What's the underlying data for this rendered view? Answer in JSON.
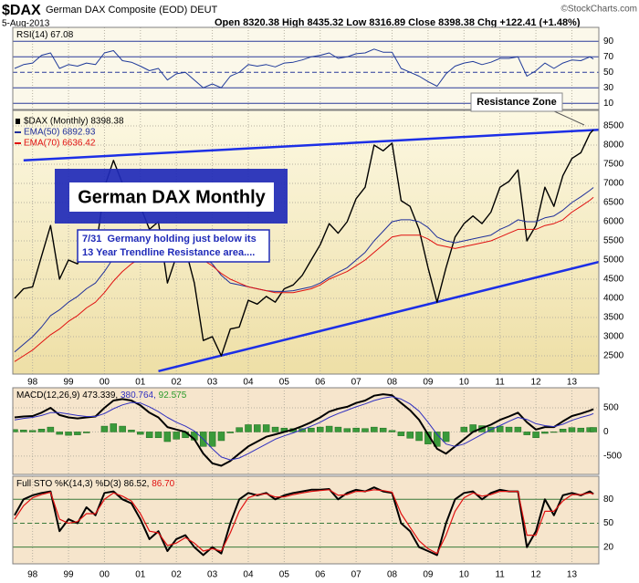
{
  "header": {
    "symbol": "$DAX",
    "name": "German DAX Composite (EOD) DEUT",
    "date": "5-Aug-2013",
    "quote": "Open 8320.38 High 8435.32 Low 8316.89 Close 8398.38 Chg +122.41 (+1.48%)",
    "credit": "©StockCharts.com"
  },
  "x_axis": {
    "xlim": [
      1997.45,
      2013.75
    ],
    "xticks": [
      {
        "value": 1998,
        "label": "98"
      },
      {
        "value": 1999,
        "label": "99"
      },
      {
        "value": 2000,
        "label": "00"
      },
      {
        "value": 2001,
        "label": "01"
      },
      {
        "value": 2002,
        "label": "02"
      },
      {
        "value": 2003,
        "label": "03"
      },
      {
        "value": 2004,
        "label": "04"
      },
      {
        "value": 2005,
        "label": "05"
      },
      {
        "value": 2006,
        "label": "06"
      },
      {
        "value": 2007,
        "label": "07"
      },
      {
        "value": 2008,
        "label": "08"
      },
      {
        "value": 2009,
        "label": "09"
      },
      {
        "value": 2010,
        "label": "10"
      },
      {
        "value": 2011,
        "label": "11"
      },
      {
        "value": 2012,
        "label": "12"
      },
      {
        "value": 2013,
        "label": "13"
      }
    ],
    "x": [
      1997.5,
      1997.75,
      1998,
      1998.25,
      1998.5,
      1998.75,
      1999,
      1999.25,
      1999.5,
      1999.75,
      2000,
      2000.25,
      2000.5,
      2000.75,
      2001,
      2001.25,
      2001.5,
      2001.75,
      2002,
      2002.25,
      2002.5,
      2002.75,
      2003,
      2003.25,
      2003.5,
      2003.75,
      2004,
      2004.25,
      2004.5,
      2004.75,
      2005,
      2005.25,
      2005.5,
      2005.75,
      2006,
      2006.25,
      2006.5,
      2006.75,
      2007,
      2007.25,
      2007.5,
      2007.75,
      2008,
      2008.25,
      2008.5,
      2008.75,
      2009,
      2009.25,
      2009.5,
      2009.75,
      2010,
      2010.25,
      2010.5,
      2010.75,
      2011,
      2011.25,
      2011.5,
      2011.75,
      2012,
      2012.25,
      2012.5,
      2012.75,
      2013,
      2013.25,
      2013.5,
      2013.6
    ]
  },
  "chart_data": [
    {
      "type": "line",
      "ylim": [
        2,
        108
      ],
      "yticks": [
        90,
        70,
        50,
        30,
        10
      ],
      "background": "#fbf8ea",
      "grid_color": "#2a3a9a",
      "legend": [
        {
          "text": "RSI(14) 67.08",
          "color": "#000000"
        }
      ],
      "series": [
        {
          "type": "line",
          "color": "#1f3a9a",
          "width": 1,
          "values": [
            55,
            60,
            62,
            72,
            75,
            55,
            60,
            58,
            62,
            60,
            75,
            78,
            65,
            63,
            58,
            52,
            55,
            40,
            48,
            50,
            40,
            30,
            35,
            30,
            45,
            50,
            60,
            58,
            60,
            57,
            62,
            63,
            66,
            70,
            72,
            75,
            68,
            70,
            74,
            75,
            80,
            76,
            76,
            55,
            50,
            45,
            38,
            32,
            48,
            58,
            62,
            64,
            60,
            63,
            68,
            68,
            70,
            45,
            52,
            62,
            55,
            62,
            66,
            65,
            70,
            67.08
          ]
        }
      ]
    },
    {
      "type": "line",
      "ylim": [
        2024,
        8905
      ],
      "yticks": [
        8500,
        8000,
        7500,
        7000,
        6500,
        6000,
        5500,
        5000,
        4500,
        4000,
        3500,
        3000,
        2500
      ],
      "background": [
        "#fcf8e2",
        "#eedfa6"
      ],
      "grid_color": "#b5b0a0",
      "legend": [
        {
          "text": "$DAX (Monthly) 8398.38",
          "color": "#000000"
        },
        {
          "text": "EMA(50) 6892.93",
          "color": "#1f2f9a"
        },
        {
          "text": "EMA(70) 6636.42",
          "color": "#e01010"
        }
      ],
      "trendlines": [
        {
          "x": [
            1997.75,
            2013.75
          ],
          "y": [
            7600,
            8400
          ],
          "color": "#1c2fe6"
        },
        {
          "x": [
            2001.5,
            2013.75
          ],
          "y": [
            2100,
            4950
          ],
          "color": "#1c2fe6"
        }
      ],
      "series": [
        {
          "type": "line",
          "color": "#000000",
          "width": 1.4,
          "values": [
            4000,
            4250,
            4300,
            5100,
            5900,
            4500,
            5000,
            4900,
            5400,
            5200,
            6900,
            7600,
            7000,
            6800,
            6400,
            5800,
            6000,
            4400,
            5100,
            5300,
            4400,
            2900,
            3000,
            2500,
            3200,
            3250,
            3950,
            3850,
            4050,
            3900,
            4250,
            4350,
            4600,
            5000,
            5400,
            5950,
            5700,
            6000,
            6600,
            6900,
            8000,
            7850,
            8050,
            6550,
            6400,
            5800,
            4800,
            3900,
            4800,
            5600,
            5950,
            6150,
            5950,
            6250,
            6900,
            7050,
            7350,
            5500,
            5900,
            6900,
            6400,
            7200,
            7650,
            7800,
            8300,
            8398.38
          ]
        },
        {
          "type": "line",
          "color": "#1f2f9a",
          "width": 1,
          "values": [
            2600,
            2800,
            3000,
            3250,
            3550,
            3700,
            3900,
            4050,
            4250,
            4400,
            4700,
            5050,
            5300,
            5500,
            5600,
            5650,
            5700,
            5600,
            5550,
            5500,
            5400,
            5100,
            4900,
            4600,
            4400,
            4350,
            4300,
            4250,
            4200,
            4180,
            4180,
            4200,
            4250,
            4300,
            4400,
            4550,
            4680,
            4800,
            5000,
            5200,
            5500,
            5750,
            6000,
            6050,
            6050,
            6000,
            5850,
            5600,
            5500,
            5450,
            5500,
            5550,
            5600,
            5650,
            5800,
            5900,
            6050,
            6000,
            6000,
            6100,
            6150,
            6300,
            6500,
            6650,
            6820,
            6892.93
          ]
        },
        {
          "type": "line",
          "color": "#e01010",
          "width": 1,
          "values": [
            2350,
            2500,
            2650,
            2850,
            3050,
            3200,
            3400,
            3550,
            3750,
            3900,
            4150,
            4450,
            4700,
            4900,
            5050,
            5150,
            5250,
            5250,
            5250,
            5250,
            5200,
            5000,
            4850,
            4650,
            4500,
            4400,
            4300,
            4250,
            4200,
            4150,
            4150,
            4150,
            4200,
            4250,
            4350,
            4500,
            4600,
            4700,
            4850,
            5000,
            5200,
            5400,
            5600,
            5650,
            5650,
            5650,
            5550,
            5400,
            5350,
            5300,
            5350,
            5400,
            5450,
            5500,
            5600,
            5700,
            5800,
            5800,
            5800,
            5900,
            5950,
            6050,
            6250,
            6400,
            6560,
            6636.42
          ]
        }
      ],
      "annotations": {
        "title_box": "German DAX Monthly",
        "note": [
          "7/31  Germany holding just below its",
          "13 Year Trendline Resistance area...."
        ],
        "callout": "Resistance Zone"
      }
    },
    {
      "type": "line",
      "ylim": [
        -880,
        915
      ],
      "yticks": [
        500,
        0,
        -500
      ],
      "background": "#f6e5cc",
      "grid_color": "#b5b0a0",
      "legend": [
        {
          "text": "MACD(12,26,9) 473.339,",
          "color": "#000000"
        },
        {
          "text": " 380.764,",
          "color": "#3030c0"
        },
        {
          "text": " 92.575",
          "color": "#2a9a2a"
        }
      ],
      "series": [
        {
          "type": "bar",
          "color": "#3a9a3a",
          "values": [
            50,
            40,
            30,
            60,
            100,
            -50,
            -70,
            -60,
            -20,
            0,
            120,
            170,
            120,
            40,
            -50,
            -120,
            -120,
            -200,
            -150,
            -120,
            -170,
            -300,
            -300,
            -180,
            -20,
            90,
            150,
            150,
            150,
            100,
            80,
            70,
            70,
            80,
            100,
            120,
            100,
            70,
            80,
            70,
            100,
            80,
            30,
            -80,
            -130,
            -180,
            -250,
            -300,
            -200,
            0,
            100,
            150,
            130,
            100,
            120,
            100,
            100,
            -60,
            -120,
            -30,
            -10,
            60,
            90,
            80,
            90,
            92.575
          ]
        },
        {
          "type": "line",
          "color": "#000000",
          "width": 2,
          "values": [
            300,
            320,
            330,
            400,
            500,
            350,
            300,
            280,
            300,
            320,
            500,
            650,
            680,
            650,
            550,
            400,
            300,
            100,
            50,
            0,
            -150,
            -450,
            -650,
            -700,
            -600,
            -450,
            -300,
            -200,
            -100,
            -50,
            0,
            50,
            120,
            200,
            300,
            420,
            480,
            520,
            600,
            650,
            750,
            780,
            760,
            600,
            450,
            250,
            -50,
            -350,
            -450,
            -300,
            -150,
            0,
            80,
            150,
            250,
            320,
            400,
            200,
            50,
            100,
            100,
            220,
            330,
            380,
            440,
            473.339
          ]
        },
        {
          "type": "line",
          "color": "#3030c0",
          "width": 1,
          "values": [
            250,
            280,
            300,
            340,
            400,
            400,
            370,
            340,
            320,
            320,
            380,
            480,
            560,
            610,
            600,
            520,
            420,
            300,
            200,
            120,
            20,
            -150,
            -350,
            -520,
            -580,
            -540,
            -450,
            -350,
            -250,
            -150,
            -80,
            -20,
            50,
            120,
            200,
            300,
            380,
            450,
            520,
            580,
            650,
            700,
            730,
            680,
            580,
            430,
            200,
            -50,
            -250,
            -300,
            -250,
            -150,
            -50,
            50,
            130,
            220,
            300,
            260,
            170,
            130,
            110,
            160,
            240,
            300,
            350,
            380.764
          ]
        }
      ]
    },
    {
      "type": "line",
      "ylim": [
        -1,
        109
      ],
      "yticks": [
        80,
        50,
        20
      ],
      "background": "#f6e5cc",
      "grid_color": "#3a7a3a",
      "legend": [
        {
          "text": "Full STO %K(14,3) %D(3) 86.52,",
          "color": "#000000"
        },
        {
          "text": " 86.70",
          "color": "#e01010"
        }
      ],
      "series": [
        {
          "type": "line",
          "color": "#000000",
          "width": 2,
          "values": [
            60,
            80,
            85,
            88,
            90,
            40,
            55,
            50,
            70,
            60,
            88,
            90,
            80,
            75,
            55,
            30,
            40,
            15,
            30,
            35,
            20,
            10,
            20,
            12,
            50,
            80,
            88,
            85,
            88,
            80,
            85,
            88,
            90,
            92,
            92,
            93,
            80,
            88,
            92,
            90,
            95,
            90,
            88,
            50,
            40,
            20,
            15,
            10,
            50,
            80,
            88,
            90,
            80,
            88,
            92,
            90,
            90,
            20,
            40,
            80,
            60,
            85,
            88,
            85,
            90,
            86.52
          ]
        },
        {
          "type": "line",
          "color": "#e01010",
          "width": 1.2,
          "values": [
            55,
            72,
            82,
            86,
            89,
            55,
            50,
            52,
            62,
            62,
            80,
            88,
            84,
            78,
            62,
            40,
            38,
            22,
            25,
            32,
            25,
            15,
            18,
            15,
            38,
            65,
            82,
            86,
            87,
            83,
            83,
            86,
            88,
            90,
            91,
            92,
            85,
            86,
            90,
            90,
            92,
            91,
            89,
            62,
            45,
            28,
            18,
            12,
            35,
            65,
            82,
            88,
            84,
            86,
            90,
            90,
            90,
            35,
            35,
            65,
            65,
            78,
            86,
            86,
            88,
            86.7
          ]
        }
      ]
    }
  ]
}
